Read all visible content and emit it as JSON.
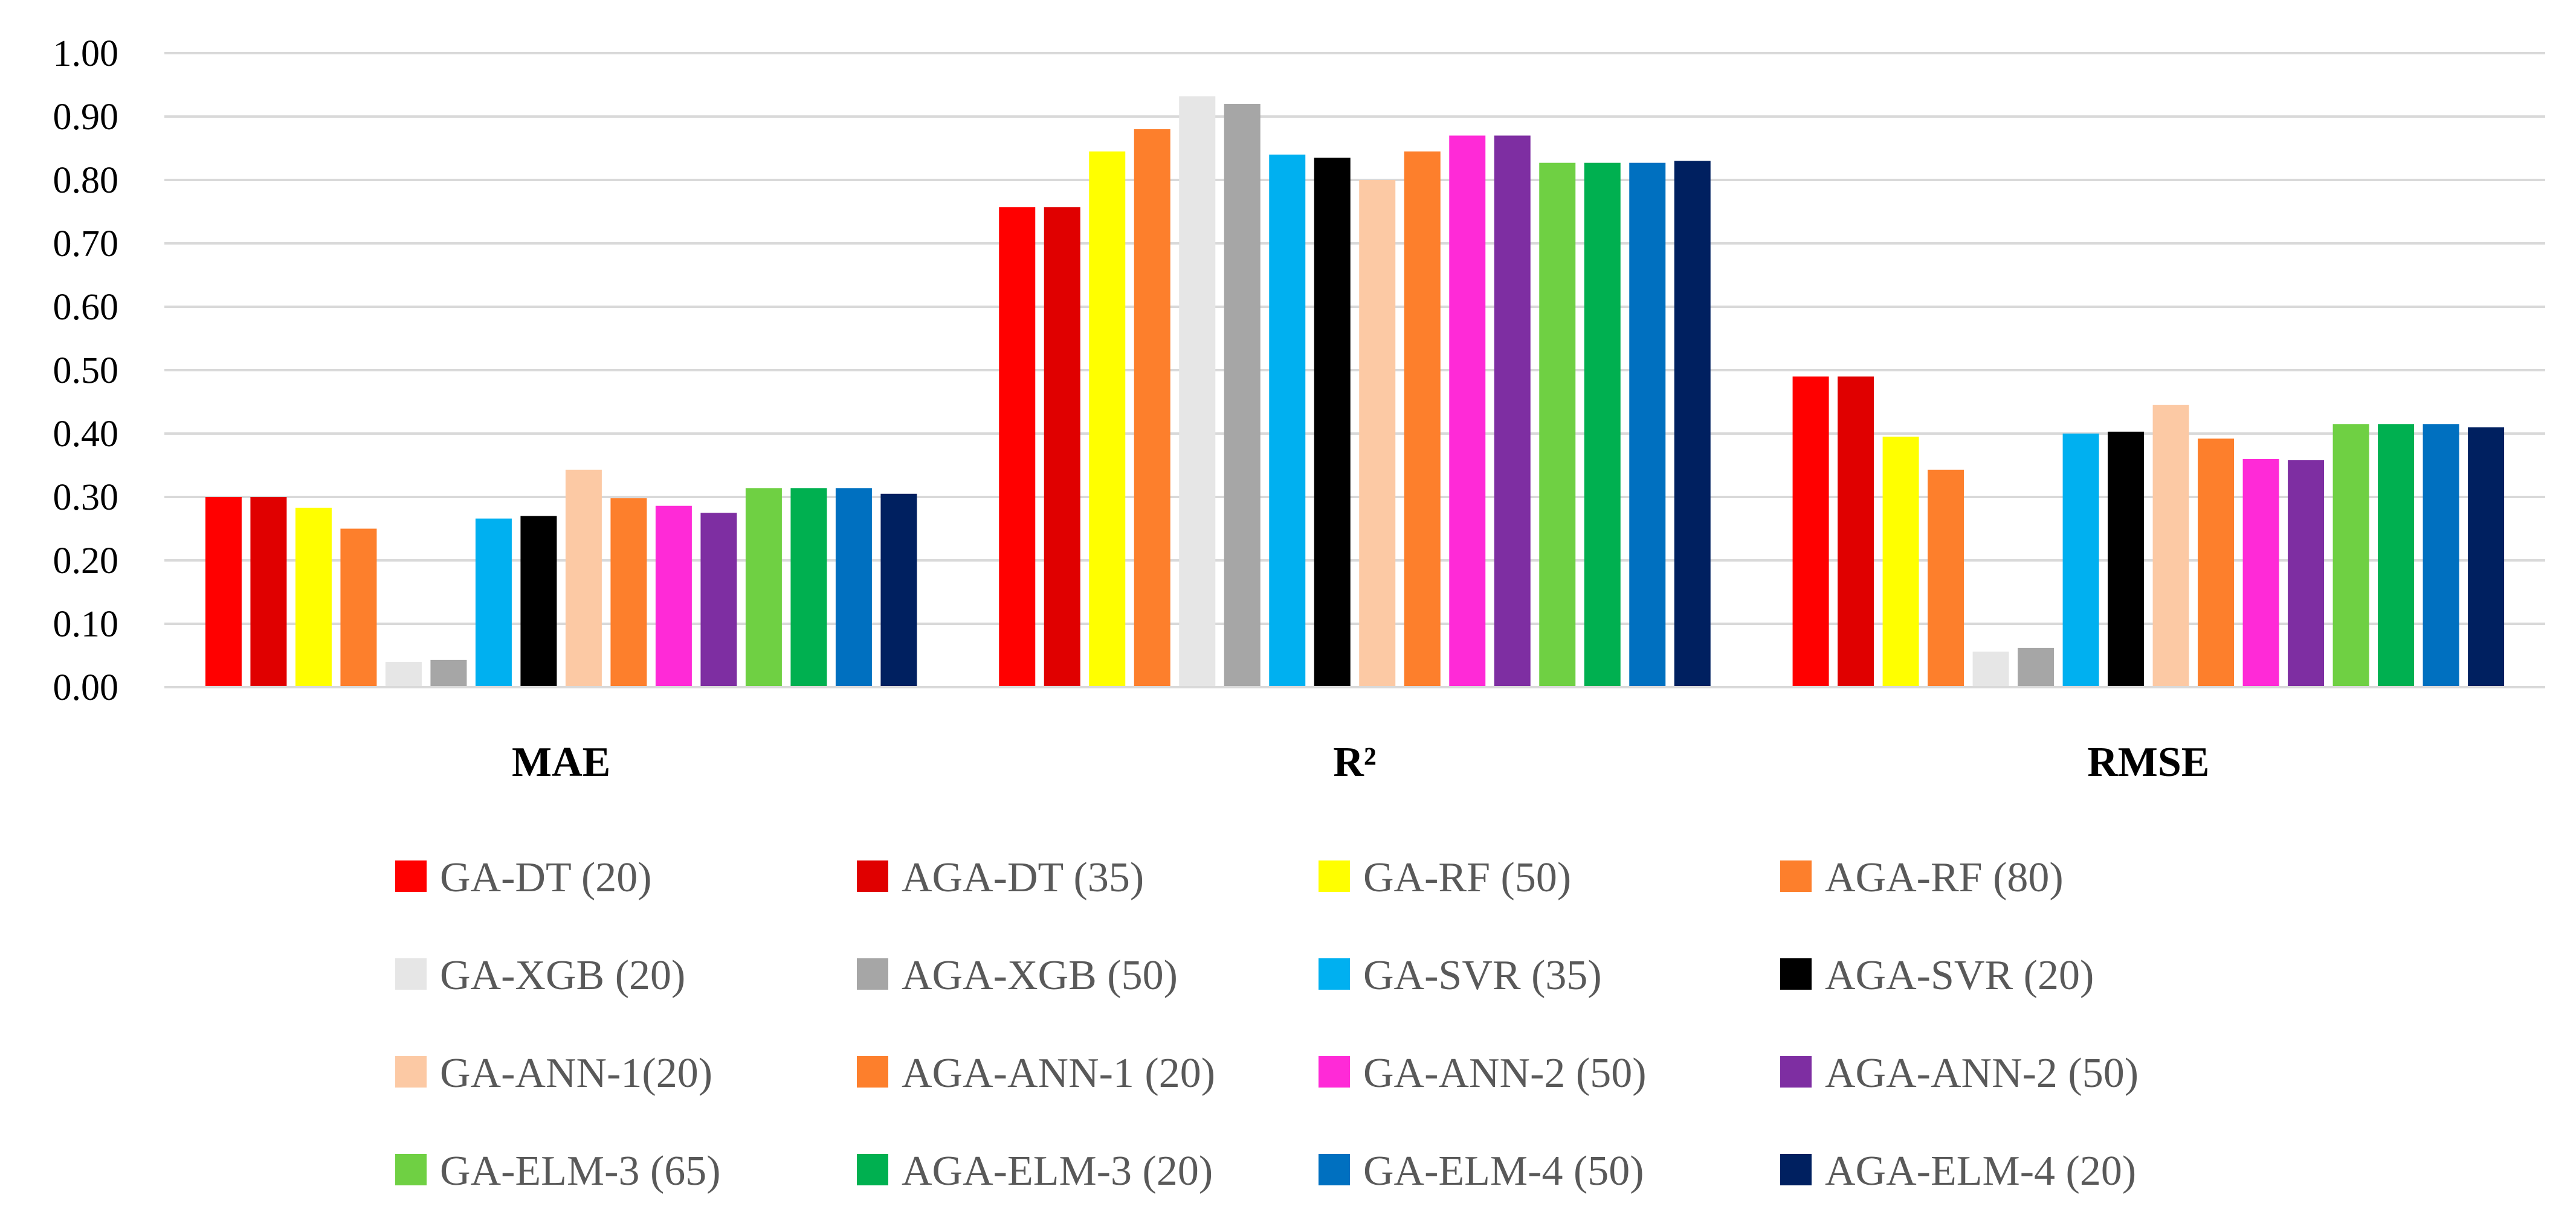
{
  "chart_data": {
    "type": "bar",
    "title": "",
    "xlabel": "",
    "ylabel": "",
    "ylim": [
      0,
      1.0
    ],
    "yticks": [
      "0.00",
      "0.10",
      "0.20",
      "0.30",
      "0.40",
      "0.50",
      "0.60",
      "0.70",
      "0.80",
      "0.90",
      "1.00"
    ],
    "grid": true,
    "legend_position": "bottom",
    "categories": [
      "MAE",
      "R²",
      "RMSE"
    ],
    "series": [
      {
        "name": "GA-DT (20)",
        "color": "#ff0000",
        "values": [
          0.3,
          0.757,
          0.49
        ]
      },
      {
        "name": "AGA-DT (35)",
        "color": "#e00000",
        "values": [
          0.3,
          0.757,
          0.49
        ]
      },
      {
        "name": "GA-RF (50)",
        "color": "#ffff00",
        "values": [
          0.283,
          0.845,
          0.395
        ]
      },
      {
        "name": "AGA-RF (80)",
        "color": "#fd7f2c",
        "values": [
          0.25,
          0.88,
          0.343
        ]
      },
      {
        "name": "GA-XGB (20)",
        "color": "#e6e6e6",
        "values": [
          0.04,
          0.932,
          0.056
        ]
      },
      {
        "name": "AGA-XGB (50)",
        "color": "#a6a6a6",
        "values": [
          0.043,
          0.92,
          0.062
        ]
      },
      {
        "name": "GA-SVR (35)",
        "color": "#00b0f0",
        "values": [
          0.266,
          0.84,
          0.4
        ]
      },
      {
        "name": "AGA-SVR (20)",
        "color": "#000000",
        "values": [
          0.27,
          0.835,
          0.403
        ]
      },
      {
        "name": "GA-ANN-1(20)",
        "color": "#fcc9a4",
        "values": [
          0.343,
          0.8,
          0.445
        ]
      },
      {
        "name": "AGA-ANN-1 (20)",
        "color": "#fd7f2c",
        "values": [
          0.298,
          0.845,
          0.392
        ]
      },
      {
        "name": "GA-ANN-2 (50)",
        "color": "#ff2ad7",
        "values": [
          0.286,
          0.87,
          0.36
        ]
      },
      {
        "name": "AGA-ANN-2 (50)",
        "color": "#7e2ea2",
        "values": [
          0.275,
          0.87,
          0.358
        ]
      },
      {
        "name": "GA-ELM-3 (65)",
        "color": "#6fd043",
        "values": [
          0.314,
          0.827,
          0.415
        ]
      },
      {
        "name": "AGA-ELM-3 (20)",
        "color": "#00b050",
        "values": [
          0.314,
          0.827,
          0.415
        ]
      },
      {
        "name": "GA-ELM-4 (50)",
        "color": "#0070c0",
        "values": [
          0.314,
          0.827,
          0.415
        ]
      },
      {
        "name": "AGA-ELM-4 (20)",
        "color": "#002060",
        "values": [
          0.305,
          0.83,
          0.41
        ]
      }
    ]
  }
}
